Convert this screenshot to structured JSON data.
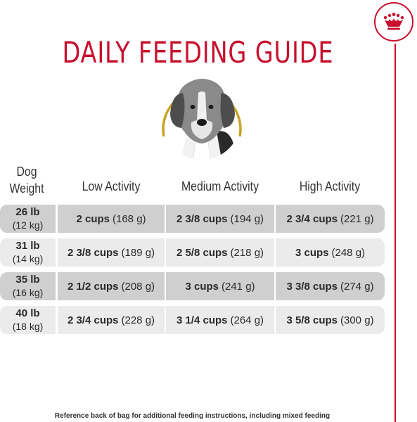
{
  "title": "DAILY FEEDING GUIDE",
  "brand_color": "#c8102e",
  "icons": {
    "brand": "crown-icon",
    "photo": "beagle-dog-icon"
  },
  "headers": {
    "weight_line1": "Dog",
    "weight_line2": "Weight",
    "low": "Low Activity",
    "medium": "Medium Activity",
    "high": "High Activity"
  },
  "rows": [
    {
      "lb": "26 lb",
      "kg": "(12 kg)",
      "low": {
        "cups": "2 cups",
        "grams": "(168 g)"
      },
      "medium": {
        "cups": "2 3/8 cups",
        "grams": "(194 g)"
      },
      "high": {
        "cups": "2 3/4 cups",
        "grams": "(221 g)"
      }
    },
    {
      "lb": "31 lb",
      "kg": "(14 kg)",
      "low": {
        "cups": "2 3/8 cups",
        "grams": "(189 g)"
      },
      "medium": {
        "cups": "2 5/8 cups",
        "grams": "(218 g)"
      },
      "high": {
        "cups": "3 cups",
        "grams": "(248 g)"
      }
    },
    {
      "lb": "35 lb",
      "kg": "(16 kg)",
      "low": {
        "cups": "2 1/2 cups",
        "grams": "(208 g)"
      },
      "medium": {
        "cups": "3 cups",
        "grams": "(241 g)"
      },
      "high": {
        "cups": "3 3/8 cups",
        "grams": "(274 g)"
      }
    },
    {
      "lb": "40 lb",
      "kg": "(18 kg)",
      "low": {
        "cups": "2 3/4 cups",
        "grams": "(228 g)"
      },
      "medium": {
        "cups": "3 1/4 cups",
        "grams": "(264 g)"
      },
      "high": {
        "cups": "3 5/8 cups",
        "grams": "(300 g)"
      }
    }
  ],
  "footnote": "Reference back of bag for additional feeding instructions, including mixed feeding"
}
